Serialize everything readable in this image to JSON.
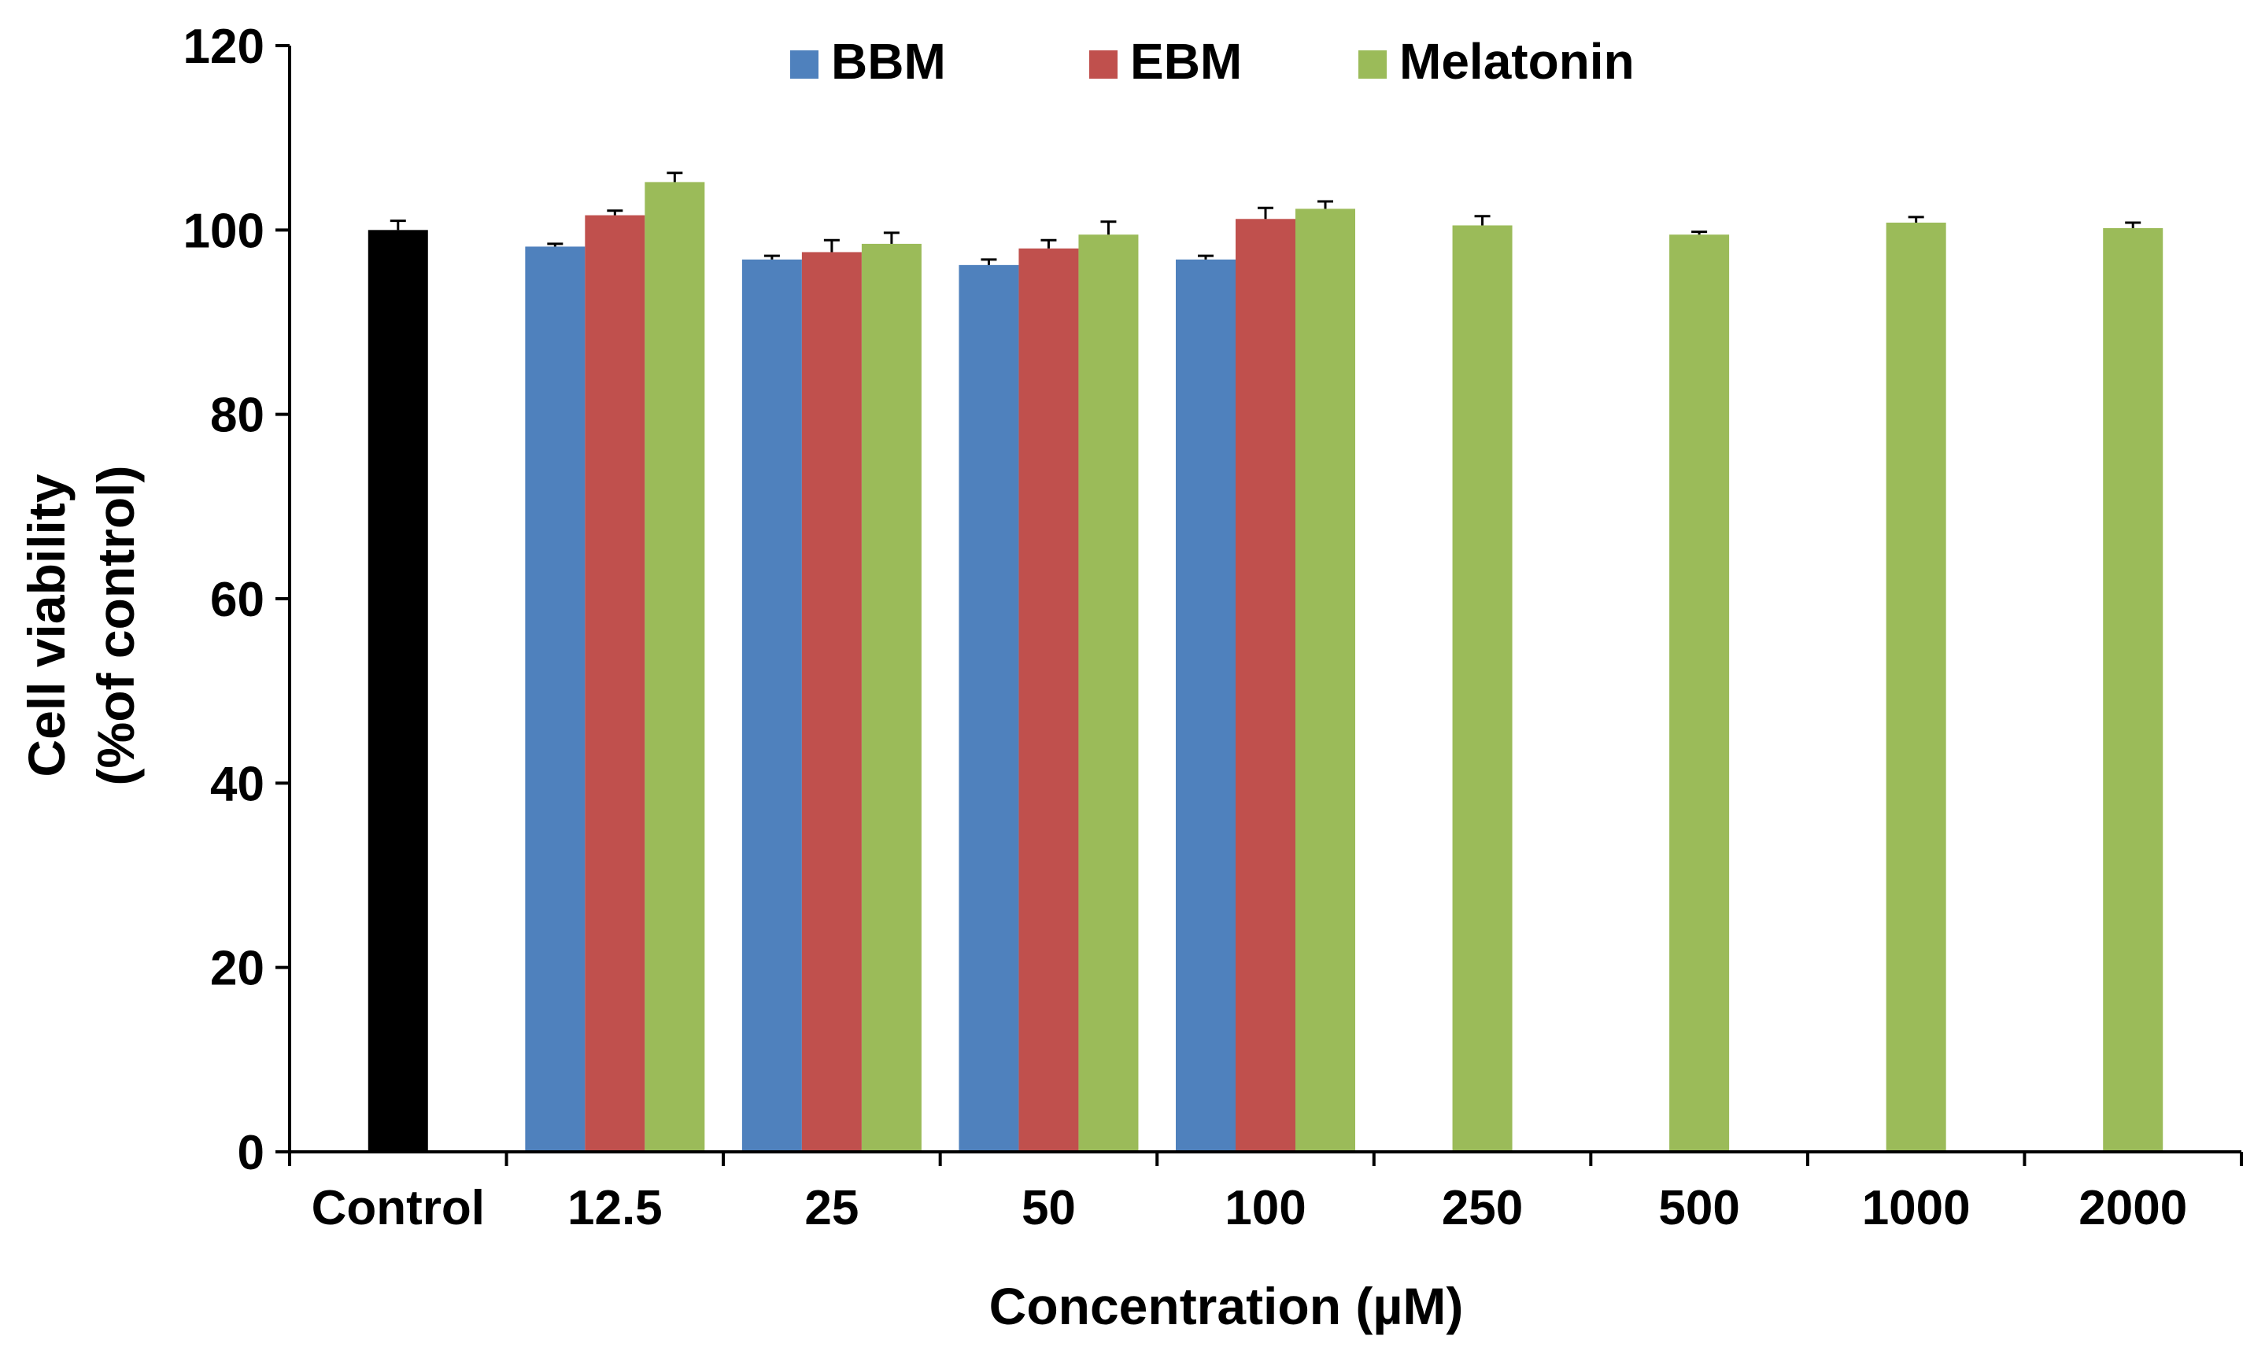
{
  "chart_data": {
    "type": "bar",
    "title": "",
    "xlabel": "Concentration (µM)",
    "ylabel_line1": "Cell viability",
    "ylabel_line2": "(%of control)",
    "ylim": [
      0,
      120
    ],
    "yticks": [
      "0",
      "20",
      "40",
      "60",
      "80",
      "100",
      "120"
    ],
    "categories": [
      "Control",
      "12.5",
      "25",
      "50",
      "100",
      "250",
      "500",
      "1000",
      "2000"
    ],
    "legend_position": "top-center",
    "series": [
      {
        "name": "Control",
        "show_in_legend": false,
        "color": "#000000",
        "values": [
          100,
          null,
          null,
          null,
          null,
          null,
          null,
          null,
          null
        ],
        "errors": [
          1.0,
          null,
          null,
          null,
          null,
          null,
          null,
          null,
          null
        ]
      },
      {
        "name": "BBM",
        "show_in_legend": true,
        "color": "#4F81BD",
        "values": [
          null,
          98.2,
          96.8,
          96.2,
          96.8,
          null,
          null,
          null,
          null
        ],
        "errors": [
          null,
          0.3,
          0.4,
          0.6,
          0.4,
          null,
          null,
          null,
          null
        ]
      },
      {
        "name": "EBM",
        "show_in_legend": true,
        "color": "#C0504D",
        "values": [
          null,
          101.6,
          97.6,
          98.0,
          101.2,
          null,
          null,
          null,
          null
        ],
        "errors": [
          null,
          0.5,
          1.3,
          0.9,
          1.2,
          null,
          null,
          null,
          null
        ]
      },
      {
        "name": "Melatonin",
        "show_in_legend": true,
        "color": "#9BBB59",
        "values": [
          null,
          105.2,
          98.5,
          99.5,
          102.3,
          100.5,
          99.5,
          100.8,
          100.2
        ],
        "errors": [
          null,
          1.0,
          1.2,
          1.4,
          0.8,
          1.0,
          0.3,
          0.6,
          0.6
        ]
      }
    ]
  }
}
